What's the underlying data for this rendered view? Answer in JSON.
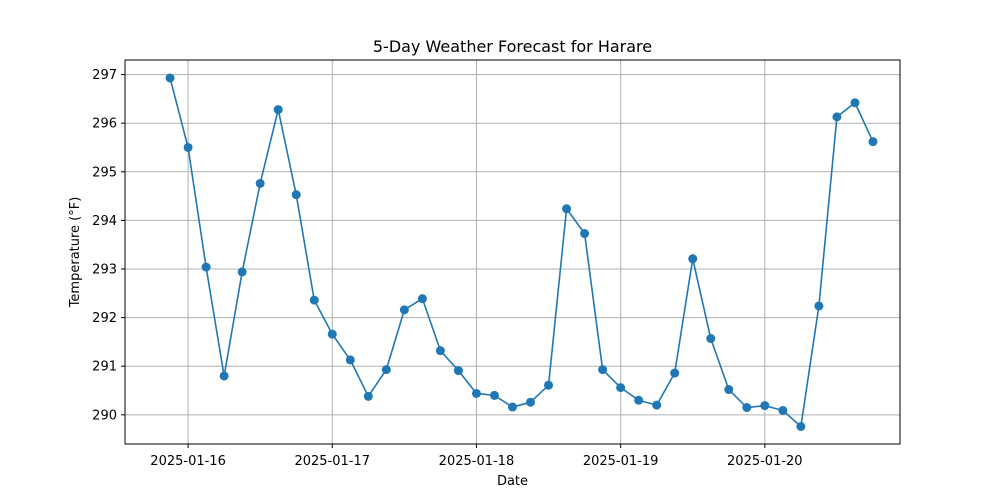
{
  "chart_data": {
    "type": "line",
    "title": "5-Day Weather Forecast for Harare",
    "xlabel": "Date",
    "ylabel": "Temperature (°F)",
    "x_tick_labels": [
      "2025-01-16",
      "2025-01-17",
      "2025-01-18",
      "2025-01-19",
      "2025-01-20"
    ],
    "y_tick_labels": [
      "290",
      "291",
      "292",
      "293",
      "294",
      "295",
      "296",
      "297"
    ],
    "xlim": [
      "2025-01-15 13:30",
      "2025-01-20 22:30"
    ],
    "ylim": [
      289.4,
      297.3
    ],
    "grid": true,
    "series": [
      {
        "color": "#1f77b4",
        "x": [
          "2025-01-15 21:00",
          "2025-01-16 00:00",
          "2025-01-16 03:00",
          "2025-01-16 06:00",
          "2025-01-16 09:00",
          "2025-01-16 12:00",
          "2025-01-16 15:00",
          "2025-01-16 18:00",
          "2025-01-16 21:00",
          "2025-01-17 00:00",
          "2025-01-17 03:00",
          "2025-01-17 06:00",
          "2025-01-17 09:00",
          "2025-01-17 12:00",
          "2025-01-17 15:00",
          "2025-01-17 18:00",
          "2025-01-17 21:00",
          "2025-01-18 00:00",
          "2025-01-18 03:00",
          "2025-01-18 06:00",
          "2025-01-18 09:00",
          "2025-01-18 12:00",
          "2025-01-18 15:00",
          "2025-01-18 18:00",
          "2025-01-18 21:00",
          "2025-01-19 00:00",
          "2025-01-19 03:00",
          "2025-01-19 06:00",
          "2025-01-19 09:00",
          "2025-01-19 12:00",
          "2025-01-19 15:00",
          "2025-01-19 18:00",
          "2025-01-19 21:00",
          "2025-01-20 00:00",
          "2025-01-20 03:00",
          "2025-01-20 06:00",
          "2025-01-20 09:00",
          "2025-01-20 12:00",
          "2025-01-20 15:00",
          "2025-01-20 18:00"
        ],
        "values": [
          296.93,
          295.5,
          293.04,
          290.8,
          292.94,
          294.76,
          296.28,
          294.53,
          292.36,
          291.66,
          291.13,
          290.38,
          290.93,
          292.16,
          292.39,
          291.32,
          290.91,
          290.44,
          290.4,
          290.16,
          290.26,
          290.61,
          294.24,
          293.73,
          290.93,
          290.56,
          290.3,
          290.2,
          290.86,
          293.21,
          291.57,
          290.52,
          290.15,
          290.19,
          290.09,
          289.76,
          292.24,
          296.13,
          296.42,
          295.62
        ]
      }
    ]
  }
}
